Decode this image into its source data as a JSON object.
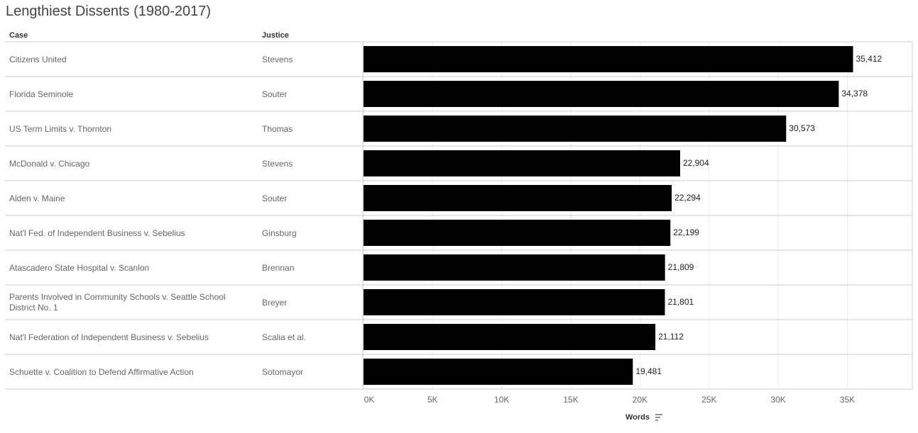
{
  "chart_data": {
    "type": "bar",
    "orientation": "horizontal",
    "title": "Lengthiest Dissents (1980-2017)",
    "category_header": "Case",
    "justice_header": "Justice",
    "categories": [
      "Citizens United",
      "Florida Seminole",
      "US Term Limits v. Thornton",
      "McDonald v. Chicago",
      "Alden v. Maine",
      "Nat'l Fed. of Independent Business v. Sebelius",
      "Atascadero State Hospital v. Scanlon",
      "Parents Involved in Community Schools v. Seattle School District No. 1",
      "Nat'l Federation of Independent Business v. Sebelius",
      "Schuette v. Coalition to Defend Affirmative Action"
    ],
    "justices": [
      "Stevens",
      "Souter",
      "Thomas",
      "Stevens",
      "Souter",
      "Ginsburg",
      "Brennan",
      "Breyer",
      "Scalia et al.",
      "Sotomayor"
    ],
    "values": [
      35412,
      34378,
      30573,
      22904,
      22294,
      22199,
      21809,
      21801,
      21112,
      19481
    ],
    "value_labels": [
      "35,412",
      "34,378",
      "30,573",
      "22,904",
      "22,294",
      "22,199",
      "21,809",
      "21,801",
      "21,112",
      "19,481"
    ],
    "color": "#000000",
    "x_label": "Words",
    "xlim": [
      0,
      39700
    ],
    "xticks": [
      {
        "value": 0,
        "label": "0K"
      },
      {
        "value": 5000,
        "label": "5K"
      },
      {
        "value": 10000,
        "label": "10K"
      },
      {
        "value": 15000,
        "label": "15K"
      },
      {
        "value": 20000,
        "label": "20K"
      },
      {
        "value": 25000,
        "label": "25K"
      },
      {
        "value": 30000,
        "label": "30K"
      },
      {
        "value": 35000,
        "label": "35K"
      }
    ],
    "grid": true
  }
}
